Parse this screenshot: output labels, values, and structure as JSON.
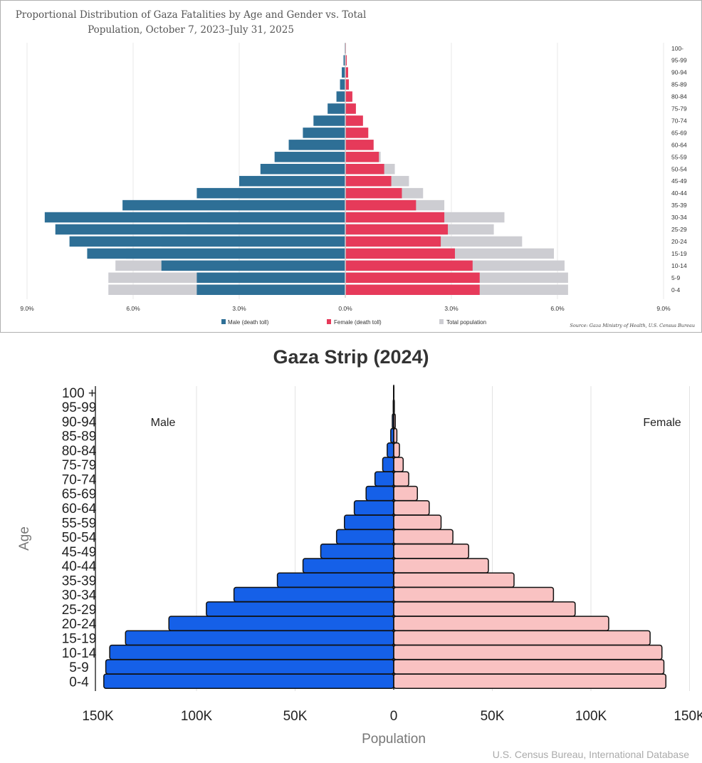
{
  "chart_data": [
    {
      "type": "bar",
      "subtype": "population-pyramid",
      "title": "Proportional Distribution of Gaza Fatalities by Age and Gender vs. Total Population, October 7, 2023–July 31, 2025",
      "title_lines": [
        "Proportional Distribution of Gaza Fatalities by Age and Gender vs. Total",
        "Population, October 7, 2023–July 31, 2025"
      ],
      "categories": [
        "0-4",
        "5-9",
        "10-14",
        "15-19",
        "20-24",
        "25-29",
        "30-34",
        "35-39",
        "40-44",
        "45-49",
        "50-54",
        "55-59",
        "60-64",
        "65-69",
        "70-74",
        "75-79",
        "80-84",
        "85-89",
        "90-94",
        "95-99",
        "100-"
      ],
      "series": [
        {
          "name": "Male (death toll)",
          "side": "left",
          "color": "#2e6f96",
          "values": [
            4.2,
            4.2,
            5.2,
            7.3,
            7.8,
            8.2,
            8.5,
            6.3,
            4.2,
            3.0,
            2.4,
            2.0,
            1.6,
            1.2,
            0.9,
            0.5,
            0.25,
            0.15,
            0.1,
            0.05,
            0.02
          ]
        },
        {
          "name": "Female (death toll)",
          "side": "right",
          "color": "#e63a5a",
          "values": [
            3.8,
            3.8,
            3.6,
            3.1,
            2.7,
            2.9,
            2.8,
            2.0,
            1.6,
            1.3,
            1.1,
            0.95,
            0.8,
            0.65,
            0.5,
            0.3,
            0.2,
            0.1,
            0.08,
            0.04,
            0.02
          ]
        },
        {
          "name": "Total population",
          "side": "both",
          "color": "#cdcdd2",
          "left_values": [
            6.7,
            6.7,
            6.5,
            6.2,
            5.2,
            4.5,
            3.9,
            3.5,
            3.0,
            2.5,
            2.1,
            1.8,
            1.4,
            1.0,
            0.7,
            0.4,
            0.25,
            0.12,
            0.08,
            0.04,
            0.02
          ],
          "values": [
            6.3,
            6.3,
            6.2,
            5.9,
            5.0,
            4.2,
            4.5,
            2.8,
            2.2,
            1.8,
            1.4,
            1.0,
            0.8,
            0.6,
            0.4,
            0.25,
            0.15,
            0.1,
            0.05,
            0.03,
            0.01
          ]
        }
      ],
      "xlim": [
        -9.0,
        9.0
      ],
      "x_ticks": [
        "9.0%",
        "6.0%",
        "3.0%",
        "0.0%",
        "3.0%",
        "6.0%",
        "9.0%"
      ],
      "legend": [
        "Male (death toll)",
        "Female (death toll)",
        "Total population"
      ],
      "source": "Source: Gaza Ministry of Health, U.S. Census Bureau",
      "grid": true
    },
    {
      "type": "bar",
      "subtype": "population-pyramid",
      "title": "Gaza Strip (2024)",
      "categories": [
        "0-4",
        "5-9",
        "10-14",
        "15-19",
        "20-24",
        "25-29",
        "30-34",
        "35-39",
        "40-44",
        "45-49",
        "50-54",
        "55-59",
        "60-64",
        "65-69",
        "70-74",
        "75-79",
        "80-84",
        "85-89",
        "90-94",
        "95-99",
        "100 +"
      ],
      "series": [
        {
          "name": "Male",
          "side": "left",
          "color": "#1560e8",
          "values": [
            147000,
            146000,
            144000,
            136000,
            114000,
            95000,
            81000,
            59000,
            46000,
            37000,
            29000,
            25000,
            20000,
            14000,
            9500,
            5600,
            3300,
            1500,
            700,
            250,
            80
          ]
        },
        {
          "name": "Female",
          "side": "right",
          "color": "#f9c2c2",
          "values": [
            138000,
            137000,
            136000,
            130000,
            109000,
            92000,
            81000,
            61000,
            48000,
            38000,
            30000,
            24000,
            18000,
            12000,
            7600,
            4800,
            2900,
            1600,
            800,
            300,
            100
          ]
        }
      ],
      "xlim": [
        -150000,
        150000
      ],
      "x_ticks": [
        "150K",
        "100K",
        "50K",
        "0",
        "50K",
        "100K",
        "150K"
      ],
      "xlabel": "Population",
      "ylabel": "Age",
      "side_labels": {
        "left": "Male",
        "right": "Female"
      },
      "source": "U.S. Census Bureau, International Database",
      "grid": true
    }
  ]
}
